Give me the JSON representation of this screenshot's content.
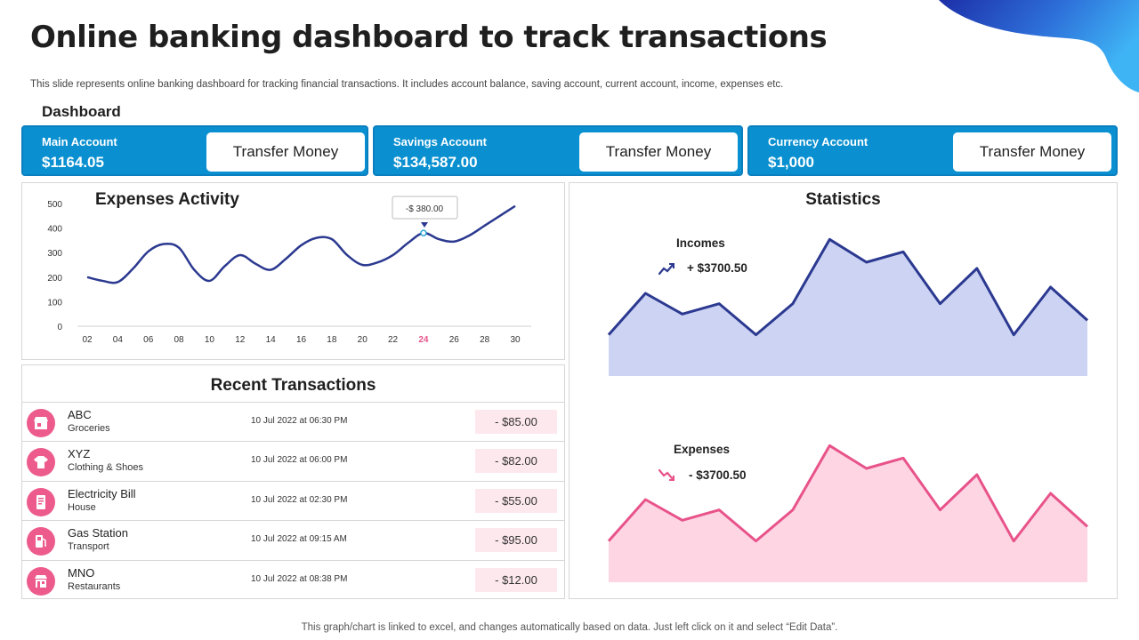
{
  "header": {
    "title": "Online banking dashboard to track transactions",
    "subtitle": "This slide represents online banking dashboard for tracking financial transactions. It includes account balance, saving account, current account, income, expenses etc."
  },
  "dashboard_label": "Dashboard",
  "accounts": [
    {
      "name": "Main Account",
      "amount": "$1164.05",
      "button": "Transfer Money"
    },
    {
      "name": "Savings Account",
      "amount": "$134,587.00",
      "button": "Transfer Money"
    },
    {
      "name": "Currency Account",
      "amount": "$1,000",
      "button": "Transfer Money"
    }
  ],
  "expenses_activity": {
    "title": "Expenses Activity",
    "tooltip": "-$ 380.00",
    "highlight_tick": "24",
    "y_ticks": [
      "500",
      "400",
      "300",
      "200",
      "100",
      "0"
    ],
    "x_ticks": [
      "02",
      "04",
      "06",
      "08",
      "10",
      "12",
      "14",
      "16",
      "18",
      "20",
      "22",
      "24",
      "26",
      "28",
      "30"
    ]
  },
  "recent_transactions": {
    "title": "Recent Transactions",
    "rows": [
      {
        "name": "ABC",
        "category": "Groceries",
        "date": "10 Jul 2022 at 06:30 PM",
        "amount": "- $85.00",
        "icon": "store-icon"
      },
      {
        "name": "XYZ",
        "category": "Clothing & Shoes",
        "date": "10 Jul 2022 at 06:00 PM",
        "amount": "- $82.00",
        "icon": "shirt-icon"
      },
      {
        "name": "Electricity Bill",
        "category": "House",
        "date": "10 Jul 2022 at 02:30 PM",
        "amount": "- $55.00",
        "icon": "bill-icon"
      },
      {
        "name": "Gas Station",
        "category": "Transport",
        "date": "10 Jul 2022 at 09:15 AM",
        "amount": "- $95.00",
        "icon": "fuel-icon"
      },
      {
        "name": "MNO",
        "category": "Restaurants",
        "date": "10 Jul 2022 at 08:38 PM",
        "amount": "- $12.00",
        "icon": "restaurant-icon"
      }
    ]
  },
  "statistics": {
    "title": "Statistics",
    "incomes_label": "Incomes",
    "incomes_value": "+ $3700.50",
    "expenses_label": "Expenses",
    "expenses_value": "- $3700.50"
  },
  "footer": "This graph/chart is linked to excel, and changes automatically based on data. Just left click on it and select “Edit Data”.",
  "colors": {
    "accent_blue": "#0a90d0",
    "line_navy": "#2b3990",
    "income_fill": "#cdd3f3",
    "expense_line": "#e8538a",
    "expense_fill": "#fdd5e3"
  },
  "chart_data": [
    {
      "type": "line",
      "title": "Expenses Activity",
      "x": [
        2,
        3,
        4,
        5,
        6,
        7,
        8,
        9,
        10,
        11,
        12,
        13,
        14,
        15,
        16,
        17,
        18,
        19,
        20,
        21,
        22,
        23,
        24,
        25,
        26,
        27,
        28,
        29,
        30
      ],
      "values": [
        200,
        185,
        180,
        235,
        305,
        335,
        320,
        230,
        185,
        245,
        290,
        255,
        230,
        275,
        330,
        360,
        355,
        290,
        250,
        260,
        290,
        340,
        380,
        355,
        345,
        370,
        410,
        450,
        490
      ],
      "ylim": [
        0,
        500
      ],
      "grid": false
    },
    {
      "type": "area",
      "title": "Incomes",
      "values": [
        10,
        30,
        20,
        25,
        10,
        25,
        56,
        45,
        50,
        25,
        42,
        10,
        33,
        17
      ],
      "grid": false
    },
    {
      "type": "area",
      "title": "Expenses",
      "values": [
        10,
        30,
        20,
        25,
        10,
        25,
        56,
        45,
        50,
        25,
        42,
        10,
        33,
        17
      ],
      "grid": false
    }
  ]
}
